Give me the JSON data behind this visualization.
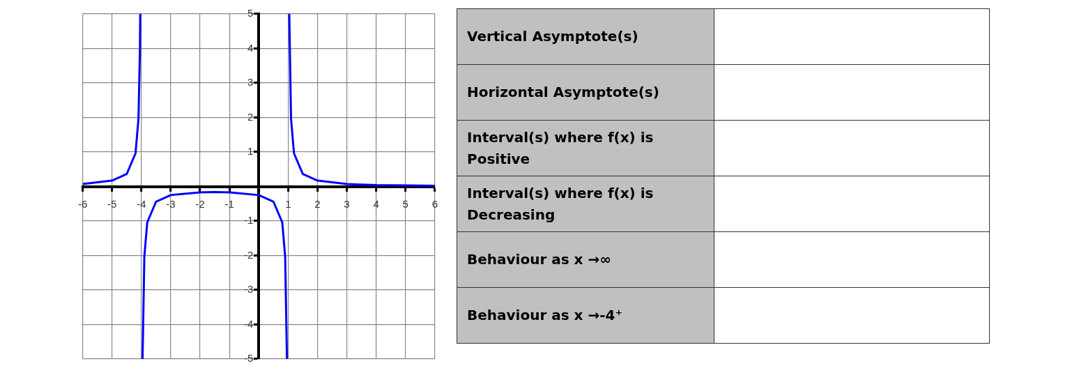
{
  "chart_data": [
    {
      "type": "line",
      "x": [
        -6,
        -5,
        -4.5,
        -4.2,
        -4.1,
        -4.05,
        -4.04,
        -4,
        -3.96,
        -3.9,
        -3.8,
        -3.5,
        -3,
        -2,
        -1.5,
        -1,
        0,
        0.5,
        0.8,
        0.9,
        0.96,
        1,
        1.04,
        1.1,
        1.2,
        1.5,
        2,
        3,
        4,
        5,
        6
      ],
      "series": [
        {
          "color": "#0000ff",
          "values": [
            0.07,
            0.17,
            0.36,
            0.96,
            1.96,
            3.96,
            5,
            null,
            -5,
            -2.04,
            -1.04,
            -0.44,
            -0.25,
            -0.17,
            -0.16,
            -0.17,
            -0.25,
            -0.44,
            -1.04,
            -2.04,
            -5,
            null,
            5,
            1.96,
            0.96,
            0.36,
            0.17,
            0.07,
            0.04,
            0.03,
            0.02
          ]
        }
      ],
      "xlim": [
        -6,
        6
      ],
      "ylim": [
        -5,
        5
      ],
      "xticks": [
        -6,
        -5,
        -4,
        -3,
        -2,
        -1,
        {
          "value": 0,
          "label": null
        },
        1,
        2,
        3,
        4,
        5,
        6
      ],
      "yticks": [
        -5,
        -4,
        -3,
        -2,
        -1,
        {
          "value": 0,
          "label": null
        },
        1,
        2,
        3,
        4,
        5
      ],
      "grid": true,
      "marker": "none",
      "line_style": "solid"
    },
    {
      "type": "other",
      "annotations": [
        "Vertical Asymptote(s)",
        "Horizontal Asymptote(s)",
        "Interval(s) where f(x) is Positive",
        "Interval(s) where f(x) is Decreasing",
        "Behaviour as x →∞",
        "Behaviour as x →-4⁺"
      ]
    }
  ]
}
